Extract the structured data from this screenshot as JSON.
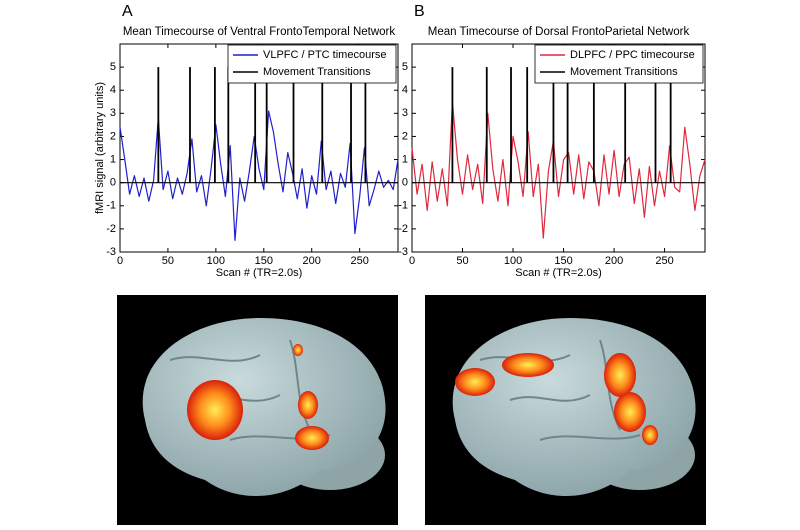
{
  "chart_data": [
    {
      "type": "line",
      "panel_label": "A",
      "title": "Mean Timecourse of Ventral FrontoTemporal Network",
      "ylabel": "fMRI signal (arbitrary units)",
      "xlabel": "Scan # (TR=2.0s)",
      "xlim": [
        0,
        290
      ],
      "ylim": [
        -3,
        6
      ],
      "xticks": [
        0,
        50,
        100,
        150,
        200,
        250
      ],
      "yticks": [
        -3,
        -2,
        -1,
        0,
        1,
        2,
        3,
        4,
        5
      ],
      "legend": "upper right",
      "series": [
        {
          "name": "VLPFC / PTC timecourse",
          "color": "#1f1fd0",
          "style": "line",
          "x": [
            0,
            5,
            10,
            15,
            20,
            25,
            30,
            35,
            40,
            45,
            50,
            55,
            60,
            65,
            70,
            75,
            80,
            85,
            90,
            95,
            100,
            105,
            110,
            115,
            120,
            125,
            130,
            135,
            140,
            145,
            150,
            155,
            160,
            165,
            170,
            175,
            180,
            185,
            190,
            195,
            200,
            205,
            210,
            215,
            220,
            225,
            230,
            235,
            240,
            245,
            250,
            255,
            260,
            265,
            270,
            275,
            280,
            285,
            290
          ],
          "values": [
            2.4,
            1.0,
            -0.5,
            0.3,
            -0.6,
            0.2,
            -0.8,
            0.1,
            2.8,
            -0.3,
            0.5,
            -0.7,
            0.2,
            -0.5,
            0.4,
            1.9,
            -0.4,
            0.3,
            -1.0,
            0.6,
            2.5,
            0.8,
            -0.6,
            1.6,
            -2.5,
            0.2,
            -0.8,
            0.5,
            2.0,
            0.6,
            -0.3,
            3.1,
            2.2,
            0.8,
            -0.4,
            1.3,
            0.4,
            -0.7,
            0.6,
            -1.1,
            0.3,
            -0.5,
            1.8,
            -0.3,
            0.5,
            -0.9,
            0.4,
            -0.2,
            1.7,
            -2.2,
            -0.6,
            1.5,
            -1.0,
            -0.3,
            0.5,
            -0.2,
            0.1,
            -0.3,
            1.0
          ]
        },
        {
          "name": "Movement Transitions",
          "color": "#000000",
          "style": "stem",
          "x": [
            40,
            73,
            99,
            113,
            141,
            153,
            181,
            211,
            241,
            256
          ],
          "values": [
            5,
            5,
            5,
            5,
            5,
            5,
            5,
            5,
            5,
            5
          ]
        }
      ]
    },
    {
      "type": "line",
      "panel_label": "B",
      "title": "Mean Timecourse of Dorsal FrontoParietal Network",
      "xlabel": "Scan # (TR=2.0s)",
      "xlim": [
        0,
        290
      ],
      "ylim": [
        -3,
        6
      ],
      "xticks": [
        0,
        50,
        100,
        150,
        200,
        250
      ],
      "yticks": [
        -3,
        -2,
        -1,
        0,
        1,
        2,
        3,
        4,
        5
      ],
      "legend": "upper right",
      "series": [
        {
          "name": "DLPFC / PPC timecourse",
          "color": "#e0283c",
          "style": "line",
          "x": [
            0,
            5,
            10,
            15,
            20,
            25,
            30,
            35,
            40,
            45,
            50,
            55,
            60,
            65,
            70,
            75,
            80,
            85,
            90,
            95,
            100,
            105,
            110,
            115,
            120,
            125,
            130,
            135,
            140,
            145,
            150,
            155,
            160,
            165,
            170,
            175,
            180,
            185,
            190,
            195,
            200,
            205,
            210,
            215,
            220,
            225,
            230,
            235,
            240,
            245,
            250,
            255,
            260,
            265,
            270,
            275,
            280,
            285,
            290
          ],
          "values": [
            1.5,
            -0.5,
            0.8,
            -1.2,
            0.9,
            -0.8,
            0.6,
            -1.0,
            3.5,
            1.0,
            -0.5,
            1.2,
            -0.3,
            0.8,
            -0.9,
            3.0,
            0.6,
            -0.8,
            1.0,
            -1.0,
            2.0,
            0.9,
            -0.6,
            2.2,
            -0.6,
            0.8,
            -2.4,
            0.5,
            1.8,
            -0.6,
            1.0,
            1.3,
            -0.5,
            1.2,
            -0.7,
            0.9,
            0.5,
            -1.0,
            1.2,
            -0.5,
            1.4,
            -0.6,
            0.8,
            1.1,
            -0.9,
            0.6,
            -1.5,
            0.7,
            -1.0,
            0.5,
            -0.6,
            1.6,
            -0.2,
            -0.4,
            2.4,
            0.8,
            -1.2,
            0.3,
            1.0
          ]
        },
        {
          "name": "Movement Transitions",
          "color": "#000000",
          "style": "stem",
          "x": [
            40,
            74,
            98,
            114,
            140,
            154,
            180,
            211,
            241,
            256
          ],
          "values": [
            5,
            5,
            5,
            5,
            5,
            5,
            5,
            5,
            5,
            5
          ]
        }
      ]
    }
  ]
}
